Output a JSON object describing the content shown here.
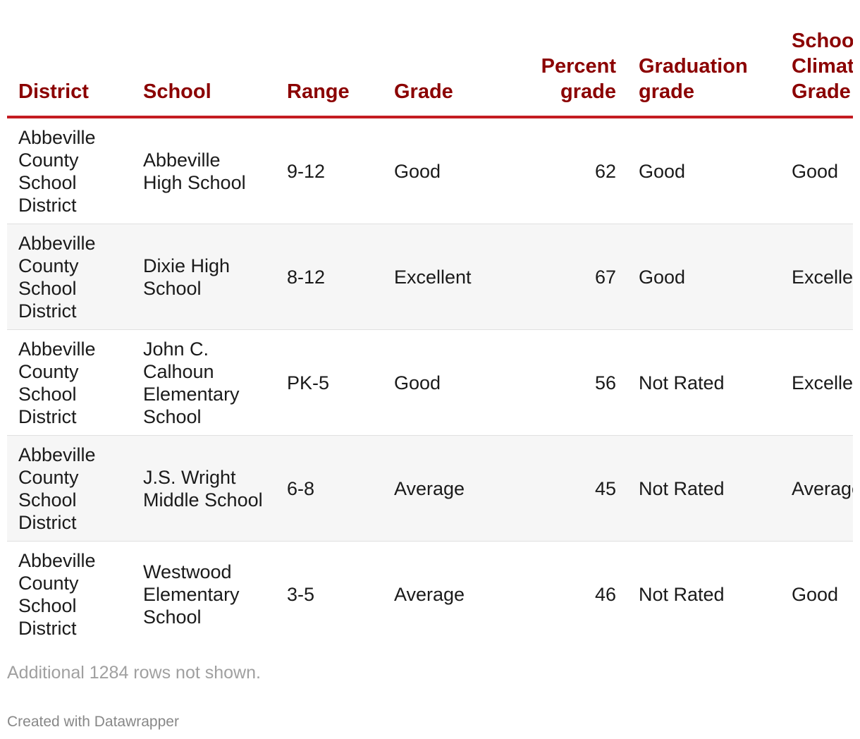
{
  "chart_data": {
    "type": "table",
    "columns": [
      "District",
      "School",
      "Range",
      "Grade",
      "Percent grade",
      "Graduation grade",
      "School Climate Grade"
    ],
    "rows": [
      [
        "Abbeville County School District",
        "Abbeville High School",
        "9-12",
        "Good",
        "62",
        "Good",
        "Good"
      ],
      [
        "Abbeville County School District",
        "Dixie High School",
        "8-12",
        "Excellent",
        "67",
        "Good",
        "Excellent"
      ],
      [
        "Abbeville County School District",
        "John C. Calhoun Elementary School",
        "PK-5",
        "Good",
        "56",
        "Not Rated",
        "Excellent"
      ],
      [
        "Abbeville County School District",
        "J.S. Wright Middle School",
        "6-8",
        "Average",
        "45",
        "Not Rated",
        "Average"
      ],
      [
        "Abbeville County School District",
        "Westwood Elementary School",
        "3-5",
        "Average",
        "46",
        "Not Rated",
        "Good"
      ]
    ],
    "numeric_columns": [
      4
    ]
  },
  "notice": "Additional 1284 rows not shown.",
  "credit": "Created with Datawrapper"
}
